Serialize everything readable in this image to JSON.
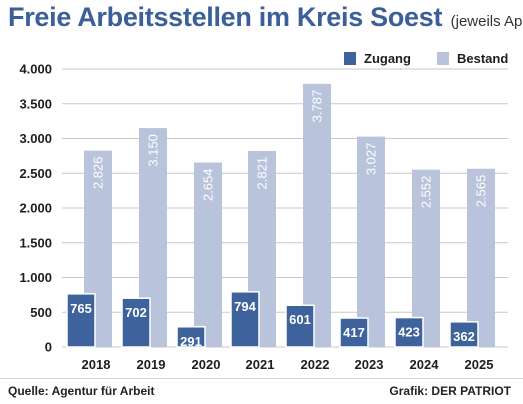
{
  "chart_data": {
    "type": "bar",
    "title": "Freie Arbeitsstellen im Kreis Soest",
    "subtitle": "(jeweils April)",
    "categories": [
      "2018",
      "2019",
      "2020",
      "2021",
      "2022",
      "2023",
      "2024",
      "2025"
    ],
    "series": [
      {
        "name": "Zugang",
        "values": [
          765,
          702,
          291,
          794,
          601,
          417,
          423,
          362
        ],
        "labels": [
          "765",
          "702",
          "291",
          "794",
          "601",
          "417",
          "423",
          "362"
        ],
        "color": "#3e629c"
      },
      {
        "name": "Bestand",
        "values": [
          2826,
          3150,
          2654,
          2821,
          3787,
          3027,
          2552,
          2565
        ],
        "labels": [
          "2.826",
          "3.150",
          "2.654",
          "2.821",
          "3.787",
          "3.027",
          "2.552",
          "2.565"
        ],
        "color": "#b9c4dc"
      }
    ],
    "y_ticks": [
      0,
      500,
      1000,
      1500,
      2000,
      2500,
      3000,
      3500,
      4000
    ],
    "y_tick_labels": [
      "0",
      "500",
      "1.000",
      "1.500",
      "2.000",
      "2.500",
      "3.000",
      "3.500",
      "4.000"
    ],
    "ylim": [
      0,
      4000
    ],
    "grid": true,
    "legend_position": "top-right"
  },
  "footer": {
    "source": "Quelle: Agentur für Arbeit",
    "credit": "Grafik: DER PATRIOT"
  }
}
